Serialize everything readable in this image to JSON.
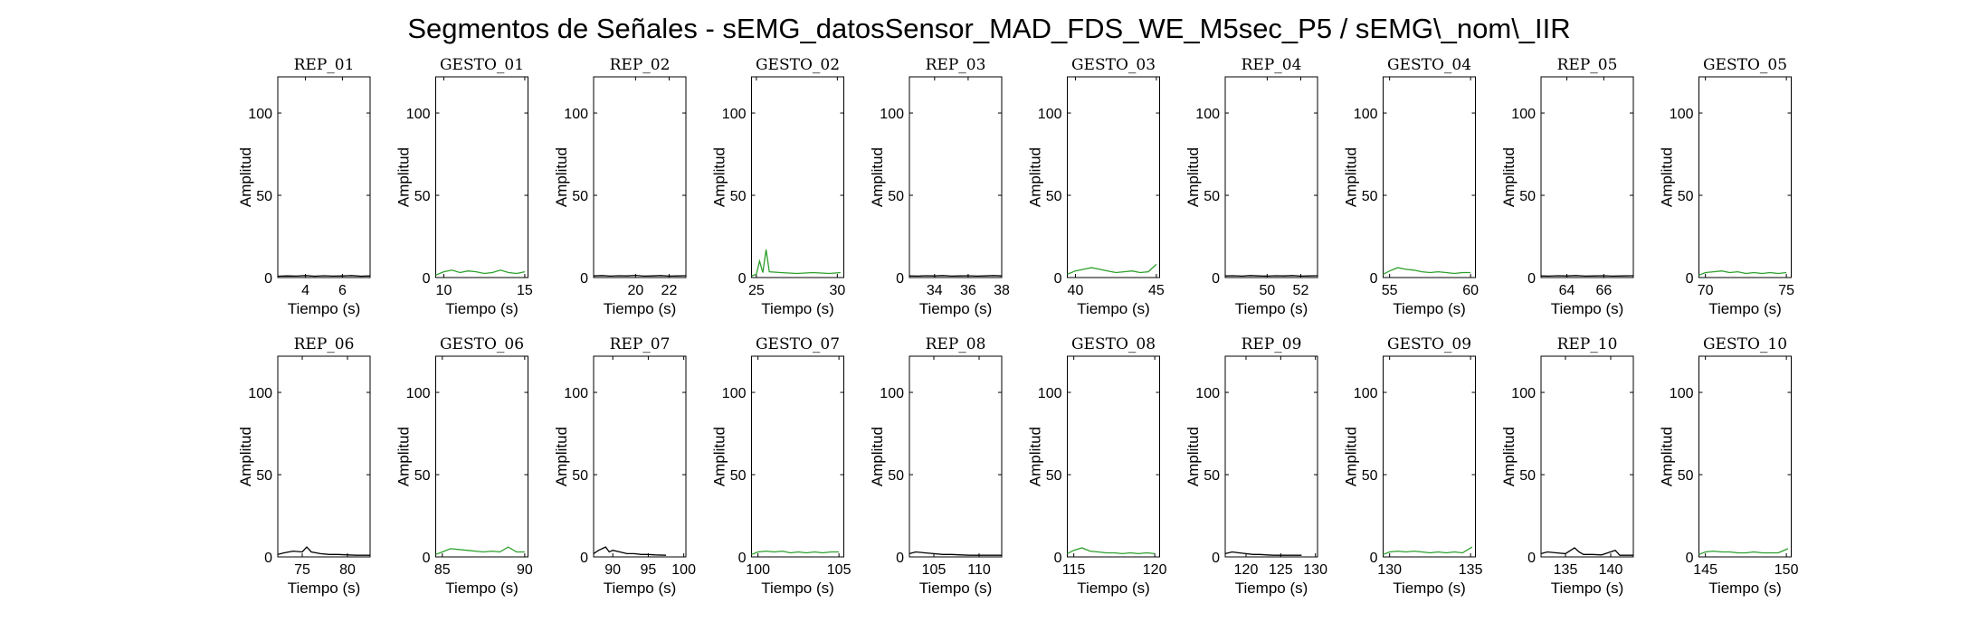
{
  "figure": {
    "title": "Segmentos de Señales - sEMG_datosSensor_MAD_FDS_WE_M5sec_P5 / sEMG\\_nom\\_IIR"
  },
  "colors": {
    "rep": "#000000",
    "gesto": "#2ca02c",
    "axes": "#000000"
  },
  "chart_data": [
    {
      "type": "line",
      "title": "REP_01",
      "color": "rep",
      "xlabel": "Tiempo (s)",
      "ylabel": "Amplitud",
      "xlim": [
        2.5,
        7.5
      ],
      "ylim": [
        0,
        122
      ],
      "xticks": [
        4,
        6
      ],
      "yticks": [
        0,
        50,
        100
      ],
      "x": [
        2.5,
        3.0,
        3.5,
        4.0,
        4.5,
        5.0,
        5.5,
        6.0,
        6.5,
        7.0,
        7.5
      ],
      "y": [
        0.8,
        1.0,
        0.9,
        1.2,
        0.8,
        1.1,
        0.9,
        1.0,
        1.2,
        0.8,
        1.0
      ]
    },
    {
      "type": "line",
      "title": "GESTO_01",
      "color": "gesto",
      "xlabel": "Tiempo (s)",
      "ylabel": "Amplitud",
      "xlim": [
        9.5,
        15.2
      ],
      "ylim": [
        0,
        122
      ],
      "xticks": [
        10,
        15
      ],
      "yticks": [
        0,
        50,
        100
      ],
      "x": [
        9.5,
        10.0,
        10.5,
        11.0,
        11.5,
        12.0,
        12.5,
        13.0,
        13.5,
        14.0,
        14.5,
        15.0
      ],
      "y": [
        1.5,
        3.5,
        4.5,
        3.0,
        4.0,
        3.5,
        2.5,
        3.0,
        4.5,
        3.0,
        2.5,
        3.5
      ]
    },
    {
      "type": "line",
      "title": "REP_02",
      "color": "rep",
      "xlabel": "Tiempo (s)",
      "ylabel": "Amplitud",
      "xlim": [
        17.5,
        23.0
      ],
      "ylim": [
        0,
        122
      ],
      "xticks": [
        20,
        22
      ],
      "yticks": [
        0,
        50,
        100
      ],
      "x": [
        17.5,
        18.0,
        18.5,
        19.0,
        19.5,
        20.0,
        20.5,
        21.0,
        21.5,
        22.0,
        22.5,
        23.0
      ],
      "y": [
        1.0,
        1.2,
        0.9,
        1.1,
        1.0,
        1.3,
        0.9,
        1.0,
        1.2,
        0.9,
        1.0,
        1.1
      ]
    },
    {
      "type": "line",
      "title": "GESTO_02",
      "color": "gesto",
      "xlabel": "Tiempo (s)",
      "ylabel": "Amplitud",
      "xlim": [
        24.7,
        30.4
      ],
      "ylim": [
        0,
        122
      ],
      "xticks": [
        25,
        30
      ],
      "yticks": [
        0,
        50,
        100
      ],
      "x": [
        24.7,
        25.0,
        25.2,
        25.4,
        25.6,
        25.8,
        26.5,
        27.5,
        28.5,
        29.5,
        30.2
      ],
      "y": [
        1.0,
        2.0,
        10.0,
        3.0,
        17.0,
        3.5,
        3.0,
        2.5,
        3.0,
        2.5,
        3.0
      ]
    },
    {
      "type": "line",
      "title": "REP_03",
      "color": "rep",
      "xlabel": "Tiempo (s)",
      "ylabel": "Amplitud",
      "xlim": [
        32.5,
        38.0
      ],
      "ylim": [
        0,
        122
      ],
      "xticks": [
        34,
        36,
        38
      ],
      "yticks": [
        0,
        50,
        100
      ],
      "x": [
        32.5,
        33.0,
        33.5,
        34.0,
        34.5,
        35.0,
        35.5,
        36.0,
        36.5,
        37.0,
        37.5,
        38.0
      ],
      "y": [
        1.0,
        0.9,
        1.1,
        1.0,
        1.2,
        0.9,
        1.0,
        1.1,
        0.9,
        1.0,
        1.2,
        1.0
      ]
    },
    {
      "type": "line",
      "title": "GESTO_03",
      "color": "gesto",
      "xlabel": "Tiempo (s)",
      "ylabel": "Amplitud",
      "xlim": [
        39.5,
        45.2
      ],
      "ylim": [
        0,
        122
      ],
      "xticks": [
        40,
        45
      ],
      "yticks": [
        0,
        50,
        100
      ],
      "x": [
        39.5,
        40.0,
        40.5,
        41.0,
        41.5,
        42.0,
        42.5,
        43.0,
        43.5,
        44.0,
        44.5,
        45.0
      ],
      "y": [
        2.0,
        4.0,
        5.0,
        6.0,
        5.0,
        4.0,
        3.0,
        3.5,
        4.0,
        3.0,
        3.5,
        8.0
      ]
    },
    {
      "type": "line",
      "title": "REP_04",
      "color": "rep",
      "xlabel": "Tiempo (s)",
      "ylabel": "Amplitud",
      "xlim": [
        47.5,
        53.0
      ],
      "ylim": [
        0,
        122
      ],
      "xticks": [
        50,
        52
      ],
      "yticks": [
        0,
        50,
        100
      ],
      "x": [
        47.5,
        48.0,
        48.5,
        49.0,
        49.5,
        50.0,
        50.5,
        51.0,
        51.5,
        52.0,
        52.5,
        53.0
      ],
      "y": [
        1.0,
        1.1,
        0.9,
        1.2,
        1.0,
        0.9,
        1.1,
        1.0,
        1.2,
        0.9,
        1.0,
        1.1
      ]
    },
    {
      "type": "line",
      "title": "GESTO_04",
      "color": "gesto",
      "xlabel": "Tiempo (s)",
      "ylabel": "Amplitud",
      "xlim": [
        54.6,
        60.3
      ],
      "ylim": [
        0,
        122
      ],
      "xticks": [
        55,
        60
      ],
      "yticks": [
        0,
        50,
        100
      ],
      "x": [
        54.6,
        55.0,
        55.5,
        56.0,
        56.5,
        57.0,
        57.5,
        58.0,
        58.5,
        59.0,
        59.5,
        60.0
      ],
      "y": [
        2.0,
        4.0,
        6.0,
        5.0,
        4.5,
        3.5,
        3.0,
        3.5,
        3.0,
        2.5,
        3.0,
        3.0
      ]
    },
    {
      "type": "line",
      "title": "REP_05",
      "color": "rep",
      "xlabel": "Tiempo (s)",
      "ylabel": "Amplitud",
      "xlim": [
        62.6,
        67.6
      ],
      "ylim": [
        0,
        122
      ],
      "xticks": [
        64,
        66
      ],
      "yticks": [
        0,
        50,
        100
      ],
      "x": [
        62.6,
        63.0,
        63.5,
        64.0,
        64.5,
        65.0,
        65.5,
        66.0,
        66.5,
        67.0,
        67.6
      ],
      "y": [
        1.0,
        0.9,
        1.1,
        1.0,
        1.2,
        0.9,
        1.0,
        1.1,
        0.9,
        1.0,
        1.1
      ]
    },
    {
      "type": "line",
      "title": "GESTO_05",
      "color": "gesto",
      "xlabel": "Tiempo (s)",
      "ylabel": "Amplitud",
      "xlim": [
        69.6,
        75.3
      ],
      "ylim": [
        0,
        122
      ],
      "xticks": [
        70,
        75
      ],
      "yticks": [
        0,
        50,
        100
      ],
      "x": [
        69.6,
        70.0,
        70.5,
        71.0,
        71.5,
        72.0,
        72.5,
        73.0,
        73.5,
        74.0,
        74.5,
        75.0
      ],
      "y": [
        1.5,
        3.0,
        3.5,
        4.0,
        3.0,
        3.5,
        2.5,
        3.0,
        2.5,
        3.0,
        2.5,
        3.0
      ]
    },
    {
      "type": "line",
      "title": "REP_06",
      "color": "rep",
      "xlabel": "Tiempo (s)",
      "ylabel": "Amplitud",
      "xlim": [
        72.3,
        82.5
      ],
      "ylim": [
        0,
        122
      ],
      "xticks": [
        75,
        80
      ],
      "yticks": [
        0,
        50,
        100
      ],
      "x": [
        72.3,
        73.0,
        74.0,
        75.0,
        75.5,
        76.0,
        77.0,
        78.0,
        79.0,
        80.0,
        81.0,
        82.5
      ],
      "y": [
        1.5,
        2.5,
        3.5,
        3.0,
        6.0,
        3.0,
        2.0,
        1.5,
        1.5,
        1.2,
        1.0,
        1.0
      ]
    },
    {
      "type": "line",
      "title": "GESTO_06",
      "color": "gesto",
      "xlabel": "Tiempo (s)",
      "ylabel": "Amplitud",
      "xlim": [
        84.6,
        90.2
      ],
      "ylim": [
        0,
        122
      ],
      "xticks": [
        85,
        90
      ],
      "yticks": [
        0,
        50,
        100
      ],
      "x": [
        84.6,
        85.0,
        85.5,
        86.0,
        86.5,
        87.0,
        87.5,
        88.0,
        88.5,
        89.0,
        89.5,
        90.0
      ],
      "y": [
        1.5,
        3.0,
        5.0,
        4.5,
        4.0,
        3.5,
        3.0,
        3.5,
        3.0,
        6.0,
        3.0,
        3.0
      ]
    },
    {
      "type": "line",
      "title": "REP_07",
      "color": "rep",
      "xlabel": "Tiempo (s)",
      "ylabel": "Amplitud",
      "xlim": [
        87.3,
        100.3
      ],
      "ylim": [
        0,
        122
      ],
      "xticks": [
        90,
        95,
        100
      ],
      "yticks": [
        0,
        50,
        100
      ],
      "x": [
        87.3,
        88.0,
        89.0,
        89.5,
        90.0,
        91.0,
        92.0,
        93.0,
        94.0,
        95.0,
        96.0,
        97.5
      ],
      "y": [
        2.0,
        4.0,
        6.0,
        3.0,
        4.0,
        3.0,
        2.0,
        2.0,
        1.5,
        1.5,
        1.2,
        1.0
      ]
    },
    {
      "type": "line",
      "title": "GESTO_07",
      "color": "gesto",
      "xlabel": "Tiempo (s)",
      "ylabel": "Amplitud",
      "xlim": [
        99.6,
        105.3
      ],
      "ylim": [
        0,
        122
      ],
      "xticks": [
        100,
        105
      ],
      "yticks": [
        0,
        50,
        100
      ],
      "x": [
        99.6,
        100.0,
        100.5,
        101.0,
        101.5,
        102.0,
        102.5,
        103.0,
        103.5,
        104.0,
        104.5,
        105.0
      ],
      "y": [
        1.5,
        3.0,
        3.5,
        3.0,
        3.5,
        2.5,
        3.0,
        2.5,
        3.0,
        2.5,
        3.0,
        3.0
      ]
    },
    {
      "type": "line",
      "title": "REP_08",
      "color": "rep",
      "xlabel": "Tiempo (s)",
      "ylabel": "Amplitud",
      "xlim": [
        102.3,
        112.5
      ],
      "ylim": [
        0,
        122
      ],
      "xticks": [
        105,
        110
      ],
      "yticks": [
        0,
        50,
        100
      ],
      "x": [
        102.3,
        103.0,
        104.0,
        105.0,
        106.0,
        107.0,
        108.0,
        109.0,
        110.0,
        111.0,
        112.5
      ],
      "y": [
        2.0,
        3.0,
        2.5,
        2.0,
        1.5,
        1.5,
        1.2,
        1.0,
        1.0,
        1.0,
        1.0
      ]
    },
    {
      "type": "line",
      "title": "GESTO_08",
      "color": "gesto",
      "xlabel": "Tiempo (s)",
      "ylabel": "Amplitud",
      "xlim": [
        114.6,
        120.3
      ],
      "ylim": [
        0,
        122
      ],
      "xticks": [
        115,
        120
      ],
      "yticks": [
        0,
        50,
        100
      ],
      "x": [
        114.6,
        115.0,
        115.5,
        116.0,
        116.5,
        117.0,
        117.5,
        118.0,
        118.5,
        119.0,
        119.5,
        120.0
      ],
      "y": [
        2.0,
        4.0,
        5.5,
        3.5,
        3.0,
        2.5,
        2.5,
        2.0,
        2.5,
        2.0,
        2.5,
        2.0
      ]
    },
    {
      "type": "line",
      "title": "REP_09",
      "color": "rep",
      "xlabel": "Tiempo (s)",
      "ylabel": "Amplitud",
      "xlim": [
        117.0,
        130.3
      ],
      "ylim": [
        0,
        122
      ],
      "xticks": [
        120,
        125,
        130
      ],
      "yticks": [
        0,
        50,
        100
      ],
      "x": [
        117.0,
        118.0,
        119.0,
        120.0,
        121.0,
        122.0,
        123.0,
        124.0,
        125.0,
        126.0,
        127.0,
        128.0
      ],
      "y": [
        2.0,
        3.0,
        2.5,
        2.0,
        1.5,
        1.5,
        1.2,
        1.0,
        1.0,
        1.0,
        1.0,
        1.0
      ]
    },
    {
      "type": "line",
      "title": "GESTO_09",
      "color": "gesto",
      "xlabel": "Tiempo (s)",
      "ylabel": "Amplitud",
      "xlim": [
        129.6,
        135.3
      ],
      "ylim": [
        0,
        122
      ],
      "xticks": [
        130,
        135
      ],
      "yticks": [
        0,
        50,
        100
      ],
      "x": [
        129.6,
        130.0,
        130.5,
        131.0,
        131.5,
        132.0,
        132.5,
        133.0,
        133.5,
        134.0,
        134.5,
        135.1
      ],
      "y": [
        1.5,
        3.0,
        3.5,
        3.0,
        3.5,
        3.0,
        2.5,
        3.0,
        2.5,
        3.0,
        2.5,
        6.0
      ]
    },
    {
      "type": "line",
      "title": "REP_10",
      "color": "rep",
      "xlabel": "Tiempo (s)",
      "ylabel": "Amplitud",
      "xlim": [
        132.3,
        142.5
      ],
      "ylim": [
        0,
        122
      ],
      "xticks": [
        135,
        140
      ],
      "yticks": [
        0,
        50,
        100
      ],
      "x": [
        132.3,
        133.0,
        134.0,
        135.0,
        136.0,
        136.5,
        137.0,
        138.0,
        139.0,
        140.5,
        141.0,
        142.5
      ],
      "y": [
        2.0,
        3.0,
        2.5,
        2.0,
        5.5,
        3.0,
        1.5,
        1.5,
        1.2,
        4.0,
        1.0,
        1.0
      ]
    },
    {
      "type": "line",
      "title": "GESTO_10",
      "color": "gesto",
      "xlabel": "Tiempo (s)",
      "ylabel": "Amplitud",
      "xlim": [
        144.6,
        150.3
      ],
      "ylim": [
        0,
        122
      ],
      "xticks": [
        145,
        150
      ],
      "yticks": [
        0,
        50,
        100
      ],
      "x": [
        144.6,
        145.0,
        145.5,
        146.0,
        146.5,
        147.0,
        147.5,
        148.0,
        148.5,
        149.0,
        149.5,
        150.1
      ],
      "y": [
        1.5,
        3.0,
        3.5,
        3.0,
        3.0,
        2.5,
        2.5,
        3.0,
        2.5,
        2.5,
        2.5,
        5.0
      ]
    }
  ]
}
